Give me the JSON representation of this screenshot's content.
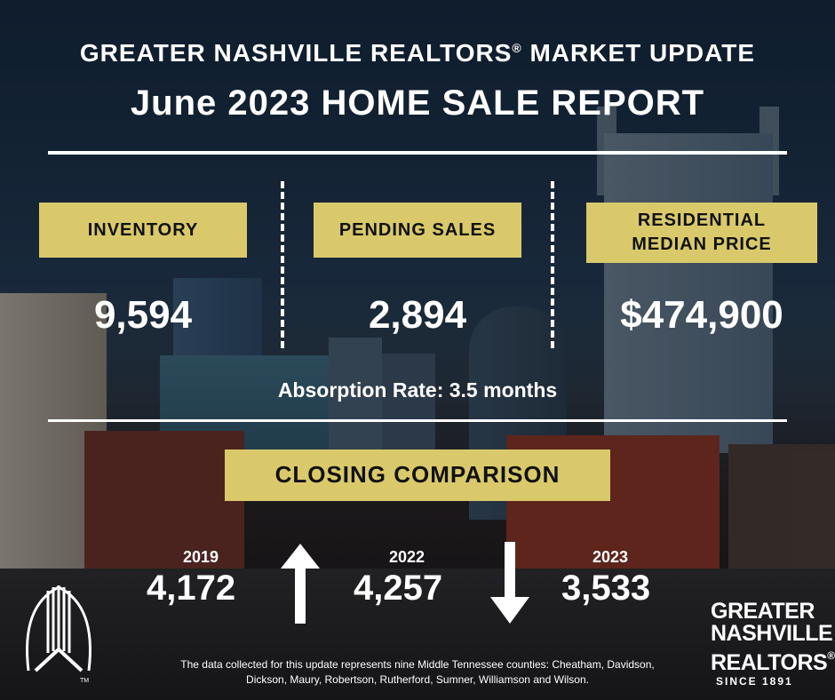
{
  "header": {
    "line1": "GREATER NASHVILLE REALTORS",
    "line1_mark": "®",
    "line1_end": "MARKET UPDATE",
    "line2": "June 2023 HOME SALE REPORT"
  },
  "stats": {
    "inventory": {
      "label": "INVENTORY",
      "value": "9,594"
    },
    "pending": {
      "label": "PENDING SALES",
      "value": "2,894"
    },
    "median": {
      "label_line1": "RESIDENTIAL",
      "label_line2": "MEDIAN PRICE",
      "value": "$474,900"
    }
  },
  "absorption": "Absorption Rate: 3.5 months",
  "closing": {
    "title": "CLOSING COMPARISON",
    "items": [
      {
        "year": "2019",
        "count": "4,172"
      },
      {
        "year": "2022",
        "count": "4,257"
      },
      {
        "year": "2023",
        "count": "3,533"
      }
    ],
    "trend_icons": [
      "arrow-up-icon",
      "arrow-down-icon"
    ]
  },
  "footnote": {
    "line1": "The data collected for this update represents nine Middle Tennessee counties: Cheatham, Davidson,",
    "line2": "Dickson, Maury, Robertson, Rutherford, Sumner, Williamson and Wilson."
  },
  "brand": {
    "line1": "GREATER",
    "line2": "NASHVILLE",
    "line3": "REALTORS",
    "reg": "®",
    "since": "SINCE 1891",
    "tm": "TM"
  },
  "colors": {
    "label_fill": "#d9c96a",
    "text": "#ffffff"
  }
}
